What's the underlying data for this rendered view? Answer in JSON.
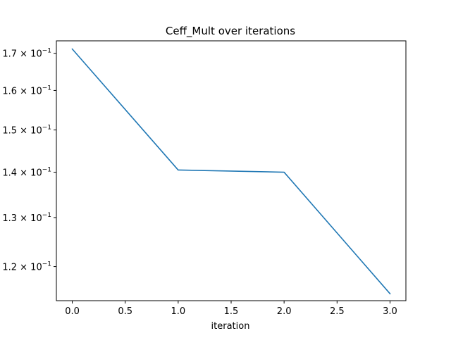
{
  "chart_data": {
    "type": "line",
    "title": "Ceff_Mult over iterations",
    "xlabel": "iteration",
    "ylabel": "",
    "x_scale": "linear",
    "y_scale": "log",
    "grid": false,
    "xlim": [
      -0.15,
      3.15
    ],
    "ylim": [
      0.1135,
      0.1735
    ],
    "x_ticks": [
      0.0,
      0.5,
      1.0,
      1.5,
      2.0,
      2.5,
      3.0
    ],
    "x_tick_labels": [
      "0.0",
      "0.5",
      "1.0",
      "1.5",
      "2.0",
      "2.5",
      "3.0"
    ],
    "y_ticks": [
      {
        "value": 0.17,
        "mantissa": "1.7",
        "base": "10",
        "exp": "−1"
      },
      {
        "value": 0.16,
        "mantissa": "1.6",
        "base": "10",
        "exp": "−1"
      },
      {
        "value": 0.15,
        "mantissa": "1.5",
        "base": "10",
        "exp": "−1"
      },
      {
        "value": 0.14,
        "mantissa": "1.4",
        "base": "10",
        "exp": "−1"
      },
      {
        "value": 0.13,
        "mantissa": "1.3",
        "base": "10",
        "exp": "−1"
      },
      {
        "value": 0.12,
        "mantissa": "1.2",
        "base": "10",
        "exp": "−1"
      }
    ],
    "series": [
      {
        "color": "#1f77b4",
        "x": [
          0,
          1,
          2,
          3
        ],
        "y": [
          0.1712,
          0.1405,
          0.14,
          0.1148
        ]
      }
    ]
  }
}
